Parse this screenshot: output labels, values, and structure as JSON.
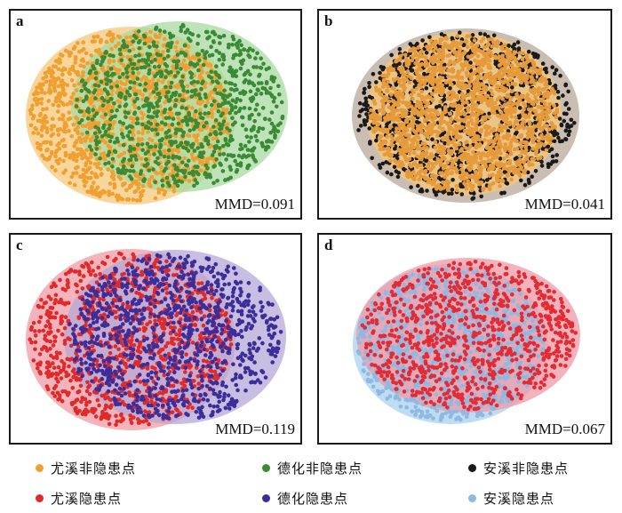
{
  "panels": [
    {
      "letter": "a",
      "mmd": "MMD=0.091",
      "clouds": [
        {
          "series": "尤溪非隐患点",
          "fill": "#f6c77a",
          "dot": "#f0a030",
          "count": 1300
        },
        {
          "series": "德化非隐患点",
          "fill": "#a8d9a0",
          "dot": "#3a8a36",
          "count": 900
        }
      ]
    },
    {
      "letter": "b",
      "mmd": "MMD=0.041",
      "clouds": [
        {
          "series": "安溪非隐患点",
          "fill": "#b8a898",
          "dot": "#1a1a1a",
          "count": 900
        },
        {
          "series": "尤溪非隐患点",
          "fill": "#f6c77a",
          "dot": "#e69a3a",
          "count": 1700
        }
      ]
    },
    {
      "letter": "c",
      "mmd": "MMD=0.119",
      "clouds": [
        {
          "series": "尤溪隐患点",
          "fill": "#f19aa4",
          "dot": "#e02a2a",
          "count": 1100
        },
        {
          "series": "德化隐患点",
          "fill": "#b6a8d8",
          "dot": "#3c2e9a",
          "count": 1000
        }
      ]
    },
    {
      "letter": "d",
      "mmd": "MMD=0.067",
      "clouds": [
        {
          "series": "安溪隐患点",
          "fill": "#a8d0ee",
          "dot": "#8fb8e2",
          "count": 1000
        },
        {
          "series": "尤溪隐患点",
          "fill": "#ef9aa6",
          "dot": "#e62a33",
          "count": 900
        }
      ]
    }
  ],
  "legend": [
    {
      "label": "尤溪非隐患点",
      "color": "#f0a030"
    },
    {
      "label": "德化非隐患点",
      "color": "#3a8a36"
    },
    {
      "label": "安溪非隐患点",
      "color": "#1a1a1a"
    },
    {
      "label": "尤溪隐患点",
      "color": "#e02a2a"
    },
    {
      "label": "德化隐患点",
      "color": "#3c2e9a"
    },
    {
      "label": "安溪隐患点",
      "color": "#8fb8e2"
    }
  ]
}
